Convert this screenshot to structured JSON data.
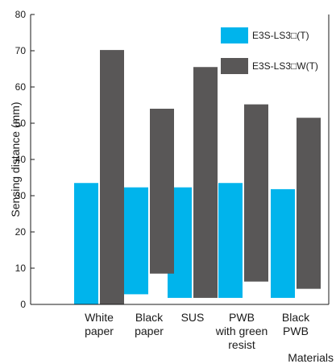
{
  "chart_data": {
    "type": "bar",
    "title": "",
    "ylabel": "Sensing distance (mm)",
    "xlabel": "Materials",
    "ylim": [
      0,
      80
    ],
    "yticks": [
      0,
      10,
      20,
      30,
      40,
      50,
      60,
      70,
      80
    ],
    "grid": false,
    "legend_position": "top-right",
    "categories": [
      [
        "White",
        "paper"
      ],
      [
        "Black",
        "paper"
      ],
      [
        "SUS"
      ],
      [
        "PWB",
        "with green",
        "resist"
      ],
      [
        "Black",
        "PWB"
      ]
    ],
    "series": [
      {
        "name": "E3S-LS3□(T)",
        "color": "#00b4ec",
        "ranges": [
          [
            0,
            33.5
          ],
          [
            2.8,
            32.3
          ],
          [
            1.8,
            32.3
          ],
          [
            1.8,
            33.5
          ],
          [
            1.8,
            31.8
          ]
        ]
      },
      {
        "name": "E3S-LS3□W(T)",
        "color": "#595757",
        "ranges": [
          [
            0,
            70.2
          ],
          [
            8.5,
            54
          ],
          [
            1.8,
            65.5
          ],
          [
            6.3,
            55.2
          ],
          [
            4.3,
            51.5
          ]
        ]
      }
    ]
  }
}
